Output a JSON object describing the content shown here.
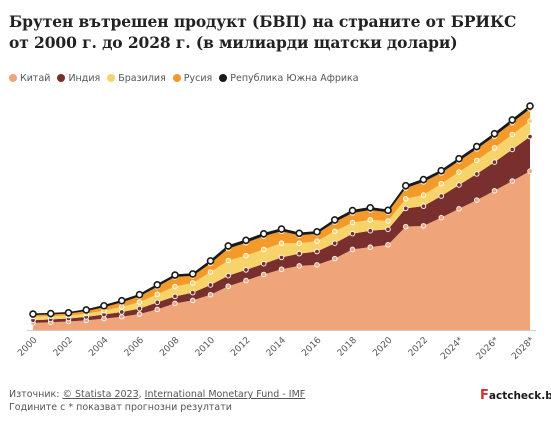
{
  "title": "Брутен вътрешен продукт (БВП) на страните от БРИКС от 2000 г. до 2028 г. (в милиарди щатски долари)",
  "footer": {
    "source_prefix": "Източник: ",
    "source_statista": "© Statista 2023",
    "source_sep": ", ",
    "source_imf": "International Monetary Fund - IMF",
    "note": "Годините с * показват прогнозни резултати"
  },
  "logo": {
    "mark": "F",
    "text": "actcheck.bg"
  },
  "colors": {
    "china": "#f0a47a",
    "india": "#7a2f2f",
    "brazil": "#f6d36b",
    "russia": "#f39a2a",
    "south_africa": "#1a1a1a",
    "axis": "#cccccc",
    "tick_text": "#555555"
  },
  "chart_data": {
    "type": "area",
    "stacked": true,
    "x": [
      "2000",
      "2001",
      "2002",
      "2003",
      "2004",
      "2005",
      "2006",
      "2007",
      "2008",
      "2009",
      "2010",
      "2011",
      "2012",
      "2013",
      "2014",
      "2015",
      "2016",
      "2017",
      "2018",
      "2019",
      "2020",
      "2021",
      "2022",
      "2023*",
      "2024*",
      "2025*",
      "2026*",
      "2027*",
      "2028*"
    ],
    "x_tick_labels": [
      "2000",
      "2002",
      "2004",
      "2006",
      "2008",
      "2010",
      "2012",
      "2014",
      "2016",
      "2018",
      "2020",
      "2022",
      "2024*",
      "2026*",
      "2028*"
    ],
    "series": [
      {
        "name": "Китай",
        "color": "#f0a47a",
        "values": [
          1211,
          1339,
          1471,
          1660,
          1955,
          2286,
          2752,
          3550,
          4594,
          5102,
          6087,
          7552,
          8532,
          9570,
          10475,
          11062,
          11233,
          12310,
          13895,
          14280,
          14688,
          17820,
          17960,
          19370,
          20900,
          22400,
          24000,
          25700,
          27400
        ]
      },
      {
        "name": "Индия",
        "color": "#7a2f2f",
        "values": [
          468,
          485,
          515,
          608,
          709,
          820,
          940,
          1216,
          1199,
          1342,
          1676,
          1823,
          1828,
          1857,
          2039,
          2104,
          2295,
          2652,
          2713,
          2835,
          2671,
          3150,
          3390,
          3730,
          4110,
          4510,
          4950,
          5430,
          5940
        ]
      },
      {
        "name": "Бразилия",
        "color": "#f6d36b",
        "values": [
          655,
          559,
          508,
          558,
          669,
          892,
          1107,
          1397,
          1696,
          1667,
          2209,
          2616,
          2465,
          2473,
          2456,
          1802,
          1796,
          2064,
          1917,
          1878,
          1448,
          1650,
          1920,
          2130,
          2230,
          2340,
          2450,
          2560,
          2680
        ]
      },
      {
        "name": "Русия",
        "color": "#f39a2a",
        "values": [
          260,
          307,
          345,
          430,
          591,
          764,
          990,
          1300,
          1661,
          1223,
          1525,
          2046,
          2208,
          2292,
          2059,
          1363,
          1276,
          1574,
          1657,
          1693,
          1489,
          1837,
          2266,
          1860,
          1900,
          1960,
          2010,
          2060,
          2110
        ]
      },
      {
        "name": "Република Южна Африка",
        "color": "#1a1a1a",
        "values": [
          152,
          136,
          129,
          198,
          256,
          288,
          303,
          333,
          316,
          330,
          417,
          459,
          434,
          400,
          381,
          346,
          323,
          381,
          404,
          389,
          338,
          419,
          405,
          381,
          400,
          420,
          440,
          460,
          480
        ]
      }
    ],
    "ylim": [
      0,
      40000
    ],
    "grid": false,
    "legend_position": "top-left"
  }
}
